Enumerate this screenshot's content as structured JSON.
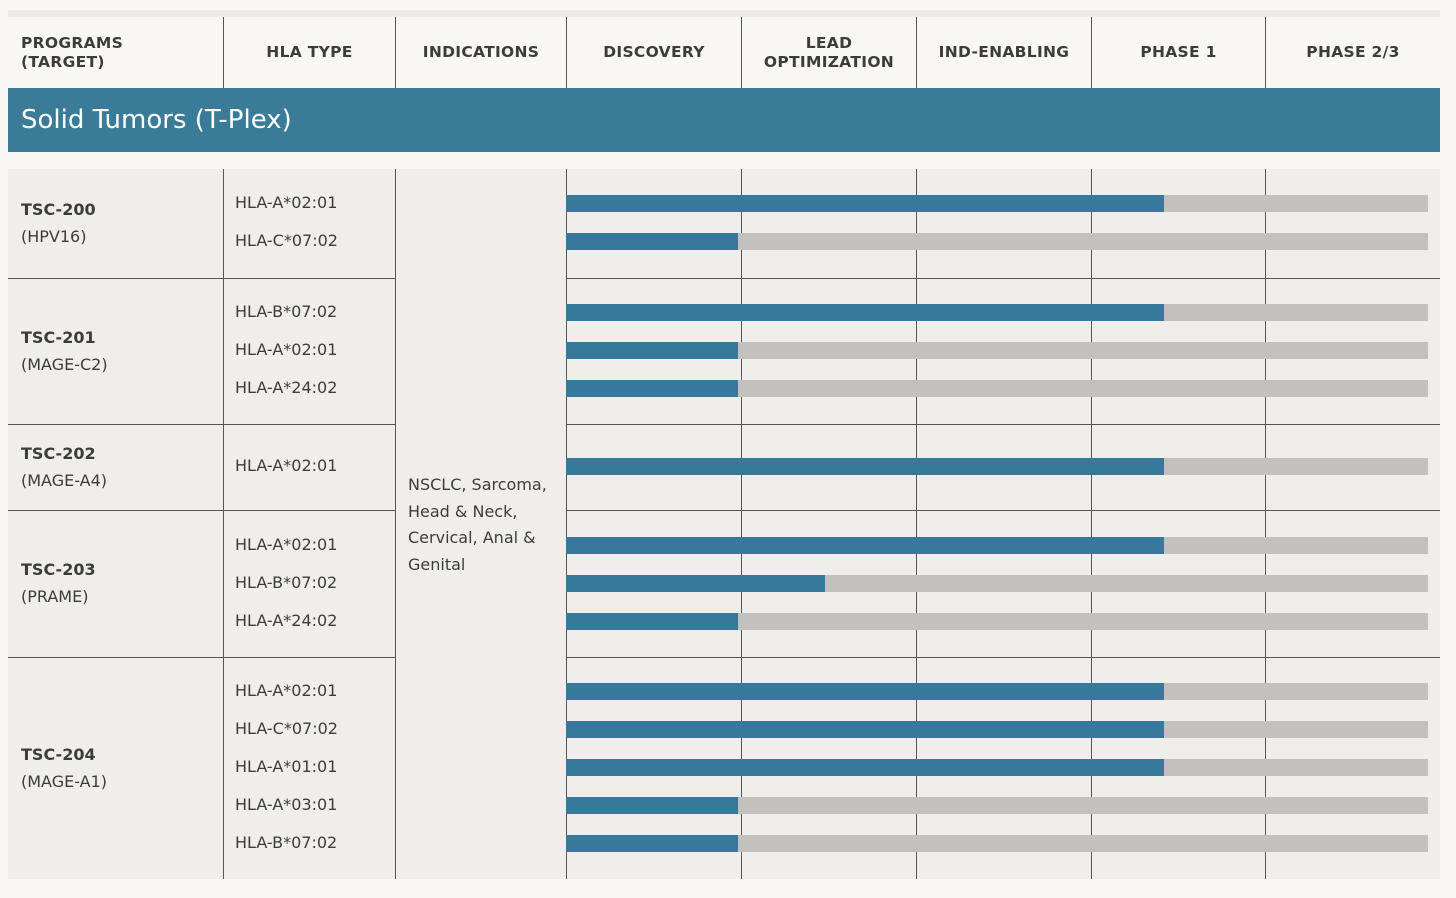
{
  "header": {
    "columns": [
      {
        "label": "PROGRAMS\n(TARGET)",
        "key": "programs"
      },
      {
        "label": "HLA TYPE",
        "key": "hla"
      },
      {
        "label": "INDICATIONS",
        "key": "indications"
      },
      {
        "label": "DISCOVERY",
        "key": "discovery"
      },
      {
        "label": "LEAD\nOPTIMIZATION",
        "key": "lead"
      },
      {
        "label": "IND-ENABLING",
        "key": "ind"
      },
      {
        "label": "PHASE 1",
        "key": "p1"
      },
      {
        "label": "PHASE 2/3",
        "key": "p23"
      }
    ]
  },
  "section_title": "Solid Tumors (T-Plex)",
  "indications_text": "NSCLC, Sarcoma, Head & Neck, Cervical, Anal & Genital",
  "colors": {
    "banner": "#3a7c98",
    "fill": "#37799a",
    "track": "#c2c1be"
  },
  "chart_data": {
    "type": "bar",
    "orientation": "horizontal",
    "stages": [
      "DISCOVERY",
      "LEAD OPTIMIZATION",
      "IND-ENABLING",
      "PHASE 1",
      "PHASE 2/3"
    ],
    "progress_unit": "stage columns completed (0-5)",
    "programs": [
      {
        "name": "TSC-200",
        "target": "(HPV16)",
        "rows": [
          {
            "hla": "HLA-A*02:01",
            "progress": 3.47
          },
          {
            "hla": "HLA-C*07:02",
            "progress": 1.0
          }
        ]
      },
      {
        "name": "TSC-201",
        "target": "(MAGE-C2)",
        "rows": [
          {
            "hla": "HLA-B*07:02",
            "progress": 3.47
          },
          {
            "hla": "HLA-A*02:01",
            "progress": 1.0
          },
          {
            "hla": "HLA-A*24:02",
            "progress": 1.0
          }
        ]
      },
      {
        "name": "TSC-202",
        "target": "(MAGE-A4)",
        "rows": [
          {
            "hla": "HLA-A*02:01",
            "progress": 3.47
          }
        ]
      },
      {
        "name": "TSC-203",
        "target": "(PRAME)",
        "rows": [
          {
            "hla": "HLA-A*02:01",
            "progress": 3.47
          },
          {
            "hla": "HLA-B*07:02",
            "progress": 1.5
          },
          {
            "hla": "HLA-A*24:02",
            "progress": 1.0
          }
        ]
      },
      {
        "name": "TSC-204",
        "target": "(MAGE-A1)",
        "rows": [
          {
            "hla": "HLA-A*02:01",
            "progress": 3.47
          },
          {
            "hla": "HLA-C*07:02",
            "progress": 3.47
          },
          {
            "hla": "HLA-A*01:01",
            "progress": 3.47
          },
          {
            "hla": "HLA-A*03:01",
            "progress": 1.0
          },
          {
            "hla": "HLA-B*07:02",
            "progress": 1.0
          }
        ]
      }
    ]
  }
}
